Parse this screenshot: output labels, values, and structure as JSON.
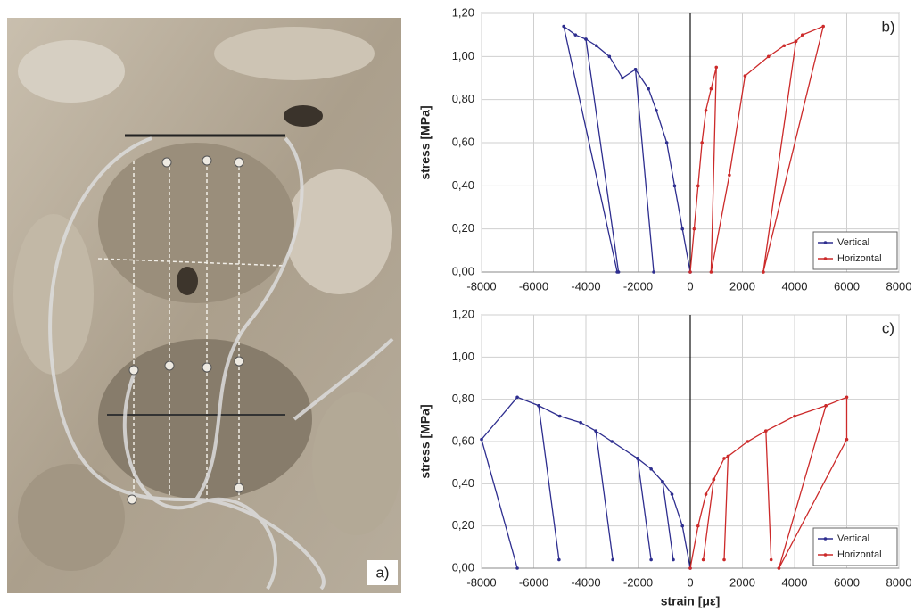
{
  "photo_label": "a)",
  "chart_data": [
    {
      "type": "line",
      "panel_label": "b)",
      "ylabel": "stress [MPa]",
      "xlim": [
        -8000,
        8000
      ],
      "xticks": [
        -8000,
        -6000,
        -4000,
        -2000,
        0,
        2000,
        4000,
        6000,
        8000
      ],
      "ylim": [
        0,
        1.2
      ],
      "yticks": [
        {
          "value": 0,
          "label": "0,00"
        },
        {
          "value": 0.2,
          "label": "0,20"
        },
        {
          "value": 0.4,
          "label": "0,40"
        },
        {
          "value": 0.6,
          "label": "0,60"
        },
        {
          "value": 0.8,
          "label": "0,80"
        },
        {
          "value": 1.0,
          "label": "1,00"
        },
        {
          "value": 1.2,
          "label": "1,20"
        }
      ],
      "grid": true,
      "legend": "lower right",
      "series": [
        {
          "name": "Vertical",
          "color": "#2e2e8f",
          "x": [
            0,
            -300,
            -600,
            -900,
            -1300,
            -1600,
            -2100,
            -1400,
            -2100,
            -2600,
            -3100,
            -3600,
            -4000,
            -2750,
            -4000,
            -4400,
            -4850,
            -2800
          ],
          "values": [
            0,
            0.2,
            0.4,
            0.6,
            0.75,
            0.85,
            0.94,
            0,
            0.94,
            0.9,
            1.0,
            1.05,
            1.08,
            0,
            1.08,
            1.1,
            1.14,
            0
          ]
        },
        {
          "name": "Horizontal",
          "color": "#cc2a2a",
          "x": [
            0,
            150,
            300,
            450,
            600,
            800,
            1000,
            800,
            1500,
            2100,
            3000,
            3600,
            4050,
            2800,
            4050,
            4300,
            5100,
            2800
          ],
          "values": [
            0,
            0.2,
            0.4,
            0.6,
            0.75,
            0.85,
            0.95,
            0,
            0.45,
            0.91,
            1.0,
            1.05,
            1.07,
            0,
            1.07,
            1.1,
            1.14,
            0
          ]
        }
      ]
    },
    {
      "type": "line",
      "panel_label": "c)",
      "ylabel": "stress [MPa]",
      "xlabel": "strain [με]",
      "xlim": [
        -8000,
        8000
      ],
      "xticks": [
        -8000,
        -6000,
        -4000,
        -2000,
        0,
        2000,
        4000,
        6000,
        8000
      ],
      "ylim": [
        0,
        1.2
      ],
      "yticks": [
        {
          "value": 0,
          "label": "0,00"
        },
        {
          "value": 0.2,
          "label": "0,20"
        },
        {
          "value": 0.4,
          "label": "0,40"
        },
        {
          "value": 0.6,
          "label": "0,60"
        },
        {
          "value": 0.8,
          "label": "0,80"
        },
        {
          "value": 1.0,
          "label": "1,00"
        },
        {
          "value": 1.2,
          "label": "1,20"
        }
      ],
      "grid": true,
      "legend": "lower right",
      "series": [
        {
          "name": "Vertical",
          "color": "#2e2e8f",
          "x": [
            0,
            -300,
            -700,
            -1060,
            -650,
            -1060,
            -1500,
            -2020,
            -1500,
            -2020,
            -3000,
            -3620,
            -2970,
            -3620,
            -4200,
            -5000,
            -5810,
            -5030,
            -5810,
            -6630,
            -8000,
            -6630
          ],
          "values": [
            0,
            0.2,
            0.35,
            0.41,
            0.04,
            0.41,
            0.47,
            0.52,
            0.04,
            0.52,
            0.6,
            0.65,
            0.04,
            0.65,
            0.69,
            0.72,
            0.77,
            0.04,
            0.77,
            0.81,
            0.61,
            0
          ]
        },
        {
          "name": "Horizontal",
          "color": "#cc2a2a",
          "x": [
            0,
            300,
            600,
            900,
            500,
            900,
            1300,
            1450,
            1300,
            1450,
            2200,
            2900,
            3100,
            2900,
            4000,
            5200,
            3400,
            5200,
            6000,
            6000,
            3400
          ],
          "values": [
            0,
            0.2,
            0.35,
            0.42,
            0.04,
            0.42,
            0.52,
            0.53,
            0.04,
            0.53,
            0.6,
            0.65,
            0.04,
            0.65,
            0.72,
            0.77,
            0,
            0.77,
            0.81,
            0.61,
            0
          ]
        }
      ]
    }
  ]
}
